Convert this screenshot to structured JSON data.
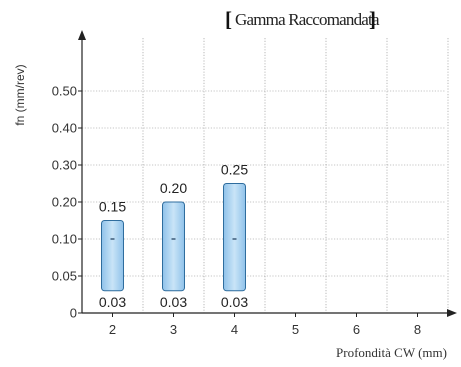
{
  "chart_data": {
    "type": "bar",
    "title": "Gamma Raccomandata",
    "ylabel": "fn (mm/rev)",
    "xlabel": "Profondità CW (mm)",
    "categories": [
      "2",
      "3",
      "4",
      "5",
      "6",
      "8"
    ],
    "y_ticks": [
      "0",
      "0.05",
      "0.10",
      "0.20",
      "0.30",
      "0.40",
      "0.50"
    ],
    "series": [
      {
        "low": 0.03,
        "high": 0.15,
        "low_label": "0.03",
        "high_label": "0.15"
      },
      {
        "low": 0.03,
        "high": 0.2,
        "low_label": "0.03",
        "high_label": "0.20"
      },
      {
        "low": 0.03,
        "high": 0.25,
        "low_label": "0.03",
        "high_label": "0.25"
      }
    ],
    "y_scale": "piecewise: 0, 0.05, 0.10, 0.20, 0.30, 0.40, 0.50 equally spaced",
    "bar_fill": "#b3d7f2",
    "bar_stroke": "#2f6d9e",
    "grid": true
  }
}
